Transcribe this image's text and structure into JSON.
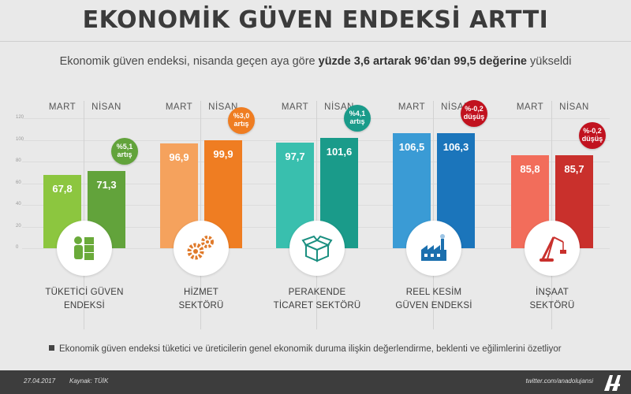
{
  "header": {
    "title": "EKONOMİK GÜVEN ENDEKSİ ARTTI",
    "subtitle_pre": "Ekonomik güven endeksi, nisanda geçen aya göre ",
    "subtitle_bold": "yüzde 3,6 artarak 96’dan 99,5 değerine",
    "subtitle_post": " yükseldi"
  },
  "months": {
    "mart": "MART",
    "nisan": "NİSAN"
  },
  "colors": {
    "green_light": "#8cc63f",
    "green_dark": "#62a33b",
    "orange_light": "#f5a25d",
    "orange_dark": "#ef7d22",
    "teal_light": "#39bfae",
    "teal_dark": "#1a9b8a",
    "blue_light": "#3a9bd5",
    "blue_dark": "#1b75bb",
    "red_light": "#f26d5b",
    "red_dark": "#c9302c",
    "down_badge": "#c1121f"
  },
  "chart_data": {
    "type": "bar",
    "ylim": [
      0,
      120
    ],
    "yticks": [
      0,
      20,
      40,
      60,
      80,
      100,
      120
    ],
    "series_labels": [
      "MART",
      "NİSAN"
    ],
    "groups": [
      {
        "sector": [
          "TÜKETİCİ GÜVEN",
          "ENDEKSİ"
        ],
        "icon": "consumer-icon",
        "mart": 67.8,
        "nisan": 71.3,
        "mart_label": "67,8",
        "nisan_label": "71,3",
        "change": [
          "%5,1",
          "artış"
        ],
        "direction": "up"
      },
      {
        "sector": [
          "HİZMET",
          "SEKTÖRÜ"
        ],
        "icon": "gears-icon",
        "mart": 96.9,
        "nisan": 99.9,
        "mart_label": "96,9",
        "nisan_label": "99,9",
        "change": [
          "%3,0",
          "artış"
        ],
        "direction": "up"
      },
      {
        "sector": [
          "PERAKENDE",
          "TİCARET SEKTÖRÜ"
        ],
        "icon": "box-icon",
        "mart": 97.7,
        "nisan": 101.6,
        "mart_label": "97,7",
        "nisan_label": "101,6",
        "change": [
          "%4,1",
          "artış"
        ],
        "direction": "up"
      },
      {
        "sector": [
          "REEL KESİM",
          "GÜVEN ENDEKSİ"
        ],
        "icon": "factory-icon",
        "mart": 106.5,
        "nisan": 106.3,
        "mart_label": "106,5",
        "nisan_label": "106,3",
        "change": [
          "%-0,2",
          "düşüş"
        ],
        "direction": "down"
      },
      {
        "sector": [
          "İNŞAAT",
          "SEKTÖRÜ"
        ],
        "icon": "crane-icon",
        "mart": 85.8,
        "nisan": 85.7,
        "mart_label": "85,8",
        "nisan_label": "85,7",
        "change": [
          "%-0,2",
          "düşüş"
        ],
        "direction": "down"
      }
    ]
  },
  "note": "Ekonomik güven endeksi tüketici ve üreticilerin genel ekonomik duruma ilişkin değerlendirme, beklenti ve eğilimlerini özetliyor",
  "footer": {
    "date": "27.04.2017",
    "source": "Kaynak: TÜİK",
    "twitter": "twitter.com/anadolujansi"
  }
}
